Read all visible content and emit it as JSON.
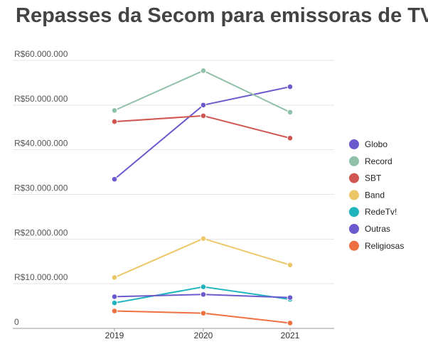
{
  "chart_data": {
    "type": "line",
    "title": "Repasses da Secom para emissoras de TV",
    "xlabel": "",
    "ylabel": "",
    "categories": [
      "2019",
      "2020",
      "2021"
    ],
    "ylim": [
      0,
      60000000
    ],
    "y_ticks": [
      0,
      10000000,
      20000000,
      30000000,
      40000000,
      50000000,
      60000000
    ],
    "y_tick_labels": [
      "0",
      "R$10.000.000",
      "R$20.000.000",
      "R$30.000.000",
      "R$40.000.000",
      "R$50.000.000",
      "R$60.000.000"
    ],
    "legend_position": "right",
    "grid": true,
    "series": [
      {
        "name": "Globo",
        "color": "#6a5acd",
        "values": [
          33400000,
          50000000,
          54100000
        ]
      },
      {
        "name": "Record",
        "color": "#8fc1a9",
        "values": [
          48800000,
          57700000,
          48400000
        ]
      },
      {
        "name": "SBT",
        "color": "#d0544f",
        "values": [
          46300000,
          47600000,
          42600000
        ]
      },
      {
        "name": "Band",
        "color": "#ecc768",
        "values": [
          11400000,
          20100000,
          14200000
        ]
      },
      {
        "name": "RedeTv!",
        "color": "#1fb4bd",
        "values": [
          5700000,
          9300000,
          6500000
        ]
      },
      {
        "name": "Outras",
        "color": "#6a5acd",
        "values": [
          7100000,
          7600000,
          6900000
        ]
      },
      {
        "name": "Religiosas",
        "color": "#ee7040",
        "values": [
          3900000,
          3400000,
          1200000
        ]
      }
    ]
  }
}
